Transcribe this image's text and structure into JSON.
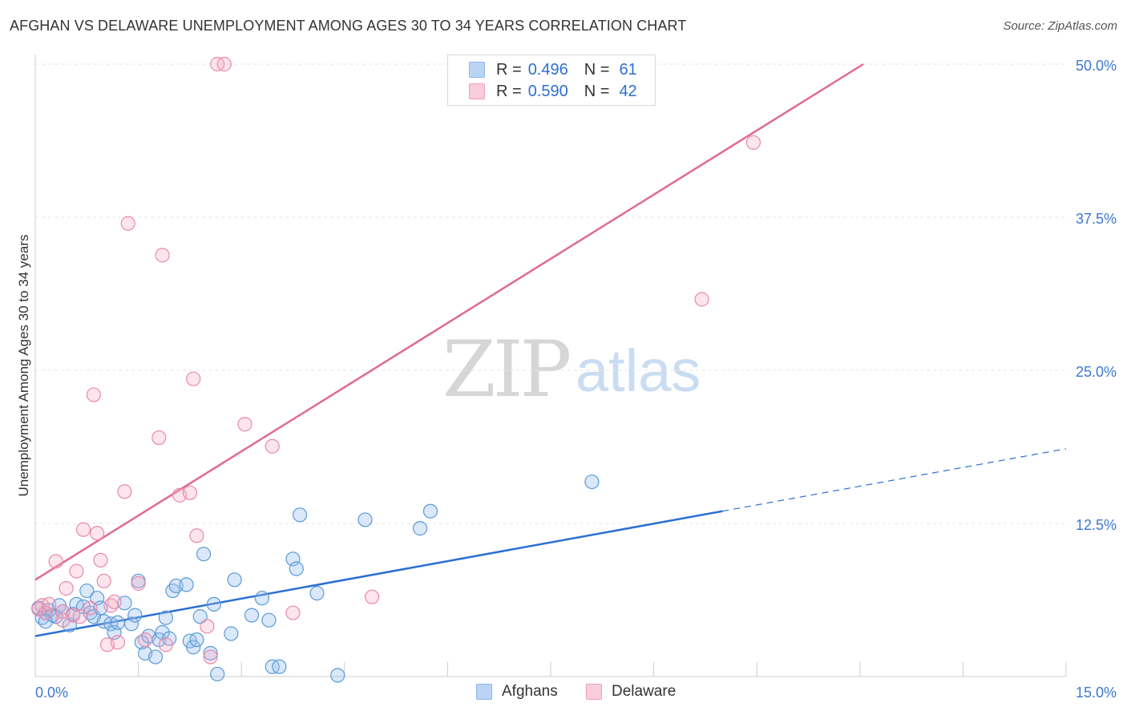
{
  "title": "AFGHAN VS DELAWARE UNEMPLOYMENT AMONG AGES 30 TO 34 YEARS CORRELATION CHART",
  "source": "Source: ZipAtlas.com",
  "watermark": {
    "zip": "ZIP",
    "atlas": "atlas"
  },
  "legend": {
    "rows": [
      {
        "r_label": "R =",
        "r_value": "0.496",
        "n_label": "N =",
        "n_value": "61",
        "color": "#8ab4e8",
        "fill": "#bcd4f4"
      },
      {
        "r_label": "R =",
        "r_value": "0.590",
        "n_label": "N =",
        "n_value": "42",
        "color": "#f0a0b8",
        "fill": "#f8ccd8"
      }
    ]
  },
  "bottom_legend": {
    "afghans": "Afghans",
    "delaware": "Delaware"
  },
  "colors": {
    "blue": "#5b9bd5",
    "blue_line": "#2a6fd0",
    "pink": "#e88aa8",
    "pink_line": "#e06a92",
    "axis_label": "#3b78d0",
    "grid": "#e4e4e4"
  },
  "chart_data": {
    "type": "scatter",
    "title": "AFGHAN VS DELAWARE UNEMPLOYMENT AMONG AGES 30 TO 34 YEARS CORRELATION CHART",
    "xlabel": "",
    "ylabel": "Unemployment Among Ages 30 to 34 years",
    "xlim": [
      0,
      15
    ],
    "ylim": [
      0,
      50
    ],
    "x_tick_labels": [
      "0.0%",
      "15.0%"
    ],
    "y_ticks": [
      12.5,
      25.0,
      37.5,
      50.0
    ],
    "y_tick_labels": [
      "12.5%",
      "25.0%",
      "37.5%",
      "50.0%"
    ],
    "grid": true,
    "legend_position": "top-center",
    "series": [
      {
        "name": "Afghans",
        "color": "#5b9bd5",
        "trend": {
          "x0": 0,
          "y0": 3.3,
          "x1": 10.0,
          "y1": 13.5,
          "dashed_to_x": 15.0,
          "dashed_to_y": 18.6
        },
        "points": [
          [
            0.05,
            5.6
          ],
          [
            0.1,
            4.8
          ],
          [
            0.15,
            5.2
          ],
          [
            0.2,
            5.4
          ],
          [
            0.25,
            5.0
          ],
          [
            0.3,
            4.9
          ],
          [
            0.35,
            5.8
          ],
          [
            0.4,
            5.3
          ],
          [
            0.5,
            4.2
          ],
          [
            0.55,
            5.1
          ],
          [
            0.6,
            5.9
          ],
          [
            0.7,
            5.7
          ],
          [
            0.75,
            7.0
          ],
          [
            0.8,
            5.2
          ],
          [
            0.85,
            4.9
          ],
          [
            0.9,
            6.4
          ],
          [
            0.95,
            5.6
          ],
          [
            1.0,
            4.5
          ],
          [
            1.1,
            4.3
          ],
          [
            1.15,
            3.6
          ],
          [
            1.2,
            4.4
          ],
          [
            1.3,
            6.0
          ],
          [
            1.4,
            4.3
          ],
          [
            1.45,
            5.0
          ],
          [
            1.5,
            7.8
          ],
          [
            1.55,
            2.8
          ],
          [
            1.6,
            1.9
          ],
          [
            1.65,
            3.3
          ],
          [
            1.75,
            1.6
          ],
          [
            1.8,
            3.0
          ],
          [
            1.85,
            3.6
          ],
          [
            1.9,
            4.8
          ],
          [
            1.95,
            3.1
          ],
          [
            2.0,
            7.0
          ],
          [
            2.05,
            7.4
          ],
          [
            2.2,
            7.5
          ],
          [
            2.25,
            2.9
          ],
          [
            2.3,
            2.4
          ],
          [
            2.35,
            3.0
          ],
          [
            2.4,
            4.9
          ],
          [
            2.45,
            10.0
          ],
          [
            2.6,
            5.9
          ],
          [
            2.55,
            1.9
          ],
          [
            2.65,
            0.2
          ],
          [
            2.85,
            3.5
          ],
          [
            2.9,
            7.9
          ],
          [
            3.15,
            5.0
          ],
          [
            3.3,
            6.4
          ],
          [
            3.4,
            4.6
          ],
          [
            3.45,
            0.8
          ],
          [
            3.55,
            0.8
          ],
          [
            3.75,
            9.6
          ],
          [
            3.8,
            8.8
          ],
          [
            3.85,
            13.2
          ],
          [
            4.1,
            6.8
          ],
          [
            4.4,
            0.1
          ],
          [
            4.8,
            12.8
          ],
          [
            5.6,
            12.1
          ],
          [
            5.75,
            13.5
          ],
          [
            8.1,
            15.9
          ],
          [
            0.15,
            4.5
          ]
        ]
      },
      {
        "name": "Delaware",
        "color": "#e88aa8",
        "trend": {
          "x0": 0,
          "y0": 7.9,
          "x1": 12.05,
          "y1": 50.0
        },
        "points": [
          [
            0.05,
            5.5
          ],
          [
            0.1,
            5.8
          ],
          [
            0.15,
            5.2
          ],
          [
            0.2,
            5.9
          ],
          [
            0.3,
            9.4
          ],
          [
            0.4,
            5.3
          ],
          [
            0.45,
            7.2
          ],
          [
            0.55,
            5.0
          ],
          [
            0.6,
            8.6
          ],
          [
            0.65,
            4.9
          ],
          [
            0.7,
            12.0
          ],
          [
            0.8,
            5.6
          ],
          [
            0.85,
            23.0
          ],
          [
            0.9,
            11.7
          ],
          [
            0.95,
            9.5
          ],
          [
            1.0,
            7.8
          ],
          [
            1.05,
            2.6
          ],
          [
            1.1,
            5.8
          ],
          [
            1.15,
            6.1
          ],
          [
            1.2,
            2.8
          ],
          [
            1.3,
            15.1
          ],
          [
            1.35,
            37.0
          ],
          [
            1.5,
            7.6
          ],
          [
            1.6,
            3.0
          ],
          [
            1.8,
            19.5
          ],
          [
            1.85,
            34.4
          ],
          [
            1.9,
            2.6
          ],
          [
            2.1,
            14.8
          ],
          [
            2.25,
            15.0
          ],
          [
            2.3,
            24.3
          ],
          [
            2.35,
            11.5
          ],
          [
            2.5,
            4.1
          ],
          [
            2.55,
            1.6
          ],
          [
            2.65,
            50.0
          ],
          [
            2.75,
            50.0
          ],
          [
            3.05,
            20.6
          ],
          [
            3.45,
            18.8
          ],
          [
            3.75,
            5.2
          ],
          [
            4.9,
            6.5
          ],
          [
            9.7,
            30.8
          ],
          [
            10.45,
            43.6
          ],
          [
            0.4,
            4.6
          ]
        ]
      }
    ]
  }
}
